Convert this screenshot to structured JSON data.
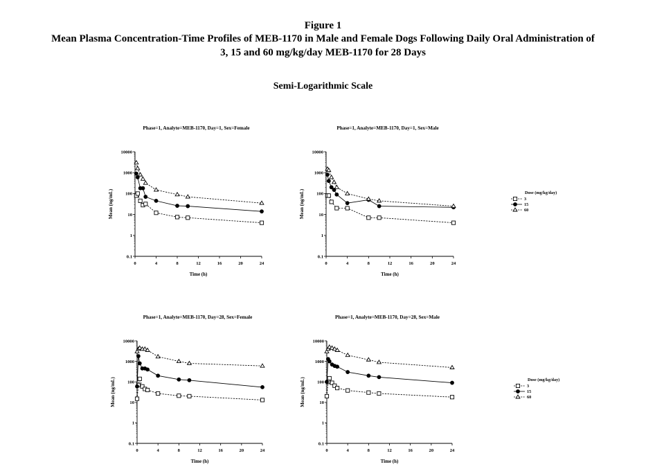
{
  "header": {
    "figure_label": "Figure 1",
    "title_line1": "Mean Plasma Concentration-Time Profiles of MEB-1170 in Male and Female Dogs Following Daily Oral Administration of",
    "title_line2": "3, 15 and 60 mg/kg/day MEB-1170 for 28 Days",
    "subtitle": "Semi-Logarithmic Scale"
  },
  "legend": {
    "title": "Dose (mg/kg/day)",
    "entries": [
      "3",
      "15",
      "60"
    ]
  },
  "colors": {
    "line": "#000000",
    "background": "#ffffff"
  },
  "chart_data": [
    {
      "type": "line",
      "title": "Phase=1, Analyte=MEB-1170, Day=1, Sex=Female",
      "xlabel": "Time (h)",
      "ylabel": "Mean (ng/mL)",
      "xlim": [
        0,
        24
      ],
      "ylim": [
        0.1,
        10000
      ],
      "yscale": "log",
      "xticks": [
        "0",
        "4",
        "8",
        "12",
        "16",
        "20",
        "24"
      ],
      "yticks": [
        "0.1",
        "1",
        "10",
        "100",
        "1000",
        "10000"
      ],
      "legend": false,
      "series": [
        {
          "name": "3",
          "marker": "square-open",
          "style": "dashed",
          "x": [
            0.25,
            0.5,
            1,
            1.5,
            2,
            4,
            8,
            10,
            24
          ],
          "y": [
            80,
            100,
            45,
            28,
            32,
            12,
            7.5,
            7,
            4
          ]
        },
        {
          "name": "15",
          "marker": "circle-filled",
          "style": "solid",
          "x": [
            0.25,
            0.5,
            1,
            1.5,
            2,
            4,
            8,
            10,
            24
          ],
          "y": [
            900,
            600,
            180,
            180,
            70,
            45,
            26,
            25,
            14
          ]
        },
        {
          "name": "60",
          "marker": "triangle-open",
          "style": "dashed",
          "x": [
            0.25,
            0.5,
            1,
            1.5,
            2,
            4,
            8,
            10,
            24
          ],
          "y": [
            3000,
            1600,
            800,
            500,
            320,
            150,
            90,
            70,
            35
          ]
        }
      ]
    },
    {
      "type": "line",
      "title": "Phase=1, Analyte=MEB-1170, Day=1, Sex=Male",
      "xlabel": "Time (h)",
      "ylabel": "Mean (ng/mL)",
      "xlim": [
        0,
        24
      ],
      "ylim": [
        0.1,
        10000
      ],
      "yscale": "log",
      "xticks": [
        "0",
        "4",
        "8",
        "12",
        "16",
        "20",
        "24"
      ],
      "yticks": [
        "0.1",
        "1",
        "10",
        "100",
        "1000",
        "10000"
      ],
      "legend": true,
      "series": [
        {
          "name": "3",
          "marker": "square-open",
          "style": "dashed",
          "x": [
            0.25,
            0.5,
            1,
            2,
            4,
            8,
            10,
            24
          ],
          "y": [
            80,
            80,
            40,
            20,
            20,
            7,
            7,
            4
          ]
        },
        {
          "name": "15",
          "marker": "circle-filled",
          "style": "solid",
          "x": [
            0.25,
            0.5,
            1,
            1.5,
            2,
            4,
            8,
            10,
            24
          ],
          "y": [
            800,
            400,
            200,
            150,
            90,
            35,
            50,
            25,
            22
          ]
        },
        {
          "name": "60",
          "marker": "triangle-open",
          "style": "dashed",
          "x": [
            0.25,
            0.5,
            1,
            1.5,
            2,
            4,
            8,
            10,
            24
          ],
          "y": [
            1500,
            1300,
            600,
            350,
            200,
            100,
            55,
            45,
            25
          ]
        }
      ]
    },
    {
      "type": "line",
      "title": "Phase=1, Analyte=MEB-1170, Day=28, Sex=Female",
      "xlabel": "Time (h)",
      "ylabel": "Mean (ng/mL)",
      "xlim": [
        0,
        24
      ],
      "ylim": [
        0.1,
        10000
      ],
      "yscale": "log",
      "xticks": [
        "0",
        "4",
        "8",
        "12",
        "16",
        "20",
        "24"
      ],
      "yticks": [
        "0.1",
        "1",
        "10",
        "100",
        "1000",
        "10000"
      ],
      "legend": false,
      "series": [
        {
          "name": "3",
          "marker": "square-open",
          "style": "dashed",
          "x": [
            0,
            0.25,
            0.5,
            1,
            1.5,
            2,
            4,
            8,
            10,
            24
          ],
          "y": [
            15,
            70,
            140,
            60,
            45,
            40,
            27,
            21,
            20,
            13
          ]
        },
        {
          "name": "15",
          "marker": "circle-filled",
          "style": "solid",
          "x": [
            0,
            0.25,
            0.5,
            1,
            1.5,
            2,
            4,
            8,
            10,
            24
          ],
          "y": [
            60,
            1800,
            800,
            450,
            450,
            400,
            200,
            130,
            120,
            55
          ]
        },
        {
          "name": "60",
          "marker": "triangle-open",
          "style": "dashed",
          "x": [
            0,
            0.25,
            0.5,
            1,
            1.5,
            2,
            4,
            8,
            10,
            24
          ],
          "y": [
            3000,
            4000,
            4500,
            4000,
            4000,
            3500,
            1700,
            1000,
            800,
            600
          ]
        }
      ]
    },
    {
      "type": "line",
      "title": "Phase=1, Analyte=MEB-1170, Day=28, Sex=Male",
      "xlabel": "Time (h)",
      "ylabel": "Mean (ng/mL)",
      "xlim": [
        0,
        24
      ],
      "ylim": [
        0.1,
        10000
      ],
      "yscale": "log",
      "xticks": [
        "0",
        "4",
        "8",
        "12",
        "16",
        "20",
        "24"
      ],
      "yticks": [
        "0.1",
        "1",
        "10",
        "100",
        "1000",
        "10000"
      ],
      "legend": true,
      "series": [
        {
          "name": "3",
          "marker": "square-open",
          "style": "dashed",
          "x": [
            0,
            0.25,
            0.5,
            1,
            1.5,
            2,
            4,
            8,
            10,
            24
          ],
          "y": [
            20,
            100,
            150,
            90,
            65,
            50,
            38,
            30,
            27,
            18
          ]
        },
        {
          "name": "15",
          "marker": "circle-filled",
          "style": "solid",
          "x": [
            0,
            0.25,
            0.5,
            1,
            1.5,
            2,
            4,
            8,
            10,
            24
          ],
          "y": [
            100,
            1300,
            1000,
            700,
            600,
            550,
            300,
            200,
            170,
            90
          ]
        },
        {
          "name": "60",
          "marker": "triangle-open",
          "style": "dashed",
          "x": [
            0,
            0.25,
            0.5,
            1,
            1.5,
            2,
            4,
            8,
            10,
            24
          ],
          "y": [
            3000,
            4000,
            5000,
            4500,
            4000,
            3500,
            2000,
            1200,
            900,
            500
          ]
        }
      ]
    }
  ]
}
